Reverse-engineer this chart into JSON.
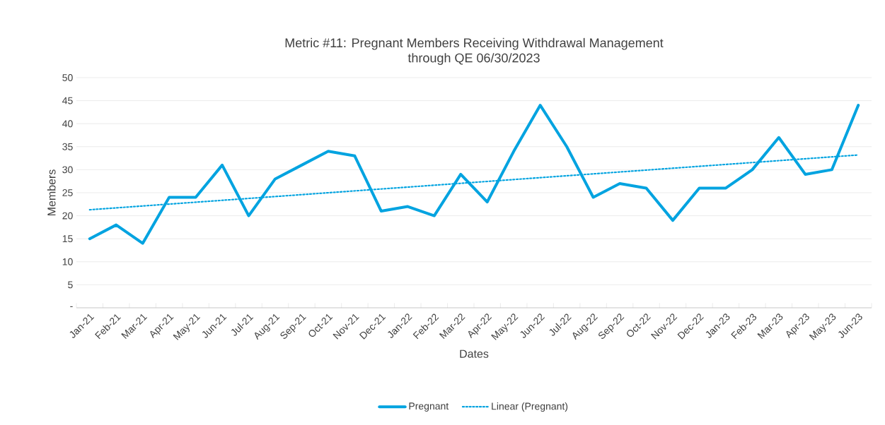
{
  "chart_data": {
    "type": "line",
    "title": "Metric #11: Pregnant Members Receiving Withdrawal Management",
    "subtitle": "through QE 06/30/2023",
    "xlabel": "Dates",
    "ylabel": "Members",
    "categories": [
      "Jan-21",
      "Feb-21",
      "Mar-21",
      "Apr-21",
      "May-21",
      "Jun-21",
      "Jul-21",
      "Aug-21",
      "Sep-21",
      "Oct-21",
      "Nov-21",
      "Dec-21",
      "Jan-22",
      "Feb-22",
      "Mar-22",
      "Apr-22",
      "May-22",
      "Jun-22",
      "Jul-22",
      "Aug-22",
      "Sep-22",
      "Oct-22",
      "Nov-22",
      "Dec-22",
      "Jan-23",
      "Feb-23",
      "Mar-23",
      "Apr-23",
      "May-23",
      "Jun-23"
    ],
    "series": [
      {
        "name": "Pregnant",
        "color": "#00a3e0",
        "line_style": "solid",
        "values": [
          15,
          18,
          14,
          24,
          24,
          31,
          20,
          28,
          31,
          34,
          33,
          21,
          22,
          20,
          29,
          23,
          34,
          44,
          35,
          24,
          27,
          26,
          19,
          26,
          26,
          30,
          37,
          29,
          30,
          44
        ]
      },
      {
        "name": "Linear (Pregnant)",
        "color": "#00a3e0",
        "line_style": "dotted",
        "values": [
          21.3,
          null,
          null,
          null,
          null,
          null,
          null,
          null,
          null,
          null,
          null,
          null,
          null,
          null,
          null,
          null,
          null,
          null,
          null,
          null,
          null,
          null,
          null,
          null,
          null,
          null,
          null,
          null,
          null,
          33.2
        ]
      }
    ],
    "ylim": [
      0,
      50
    ],
    "yticks": [
      {
        "value": 0,
        "label": "-"
      },
      5,
      10,
      15,
      20,
      25,
      30,
      35,
      40,
      45,
      50
    ],
    "grid": "y",
    "legend": "bottom"
  }
}
